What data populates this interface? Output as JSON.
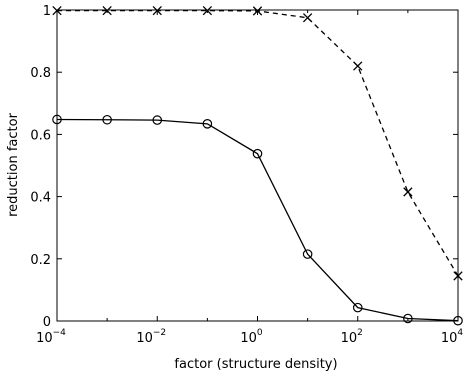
{
  "chart_data": {
    "type": "line",
    "xscale": "log",
    "xlim": [
      0.0001,
      10000
    ],
    "ylim": [
      0,
      1
    ],
    "xlabel": "factor (structure density)",
    "ylabel": "reduction factor",
    "x_ticks": [
      {
        "base": "10",
        "exp": "−4",
        "value": 0.0001
      },
      {
        "base": "10",
        "exp": "−2",
        "value": 0.01
      },
      {
        "base": "10",
        "exp": "0",
        "value": 1
      },
      {
        "base": "10",
        "exp": "2",
        "value": 100
      },
      {
        "base": "10",
        "exp": "4",
        "value": 10000
      }
    ],
    "y_ticks": [
      {
        "label": "0",
        "value": 0
      },
      {
        "label": "0.2",
        "value": 0.2
      },
      {
        "label": "0.4",
        "value": 0.4
      },
      {
        "label": "0.6",
        "value": 0.6
      },
      {
        "label": "0.8",
        "value": 0.8
      },
      {
        "label": "1",
        "value": 1
      }
    ],
    "grid": false,
    "x": [
      0.0001,
      0.001,
      0.01,
      0.1,
      1,
      10,
      100,
      1000,
      10000
    ],
    "series": [
      {
        "marker": "circle",
        "line_style": "solid",
        "color": "#000000",
        "values": [
          0.648,
          0.647,
          0.646,
          0.634,
          0.538,
          0.215,
          0.043,
          0.008,
          0.001
        ]
      },
      {
        "marker": "x",
        "line_style": "dashed",
        "color": "#000000",
        "values": [
          0.998,
          0.998,
          0.998,
          0.998,
          0.997,
          0.975,
          0.82,
          0.415,
          0.145
        ]
      }
    ]
  }
}
